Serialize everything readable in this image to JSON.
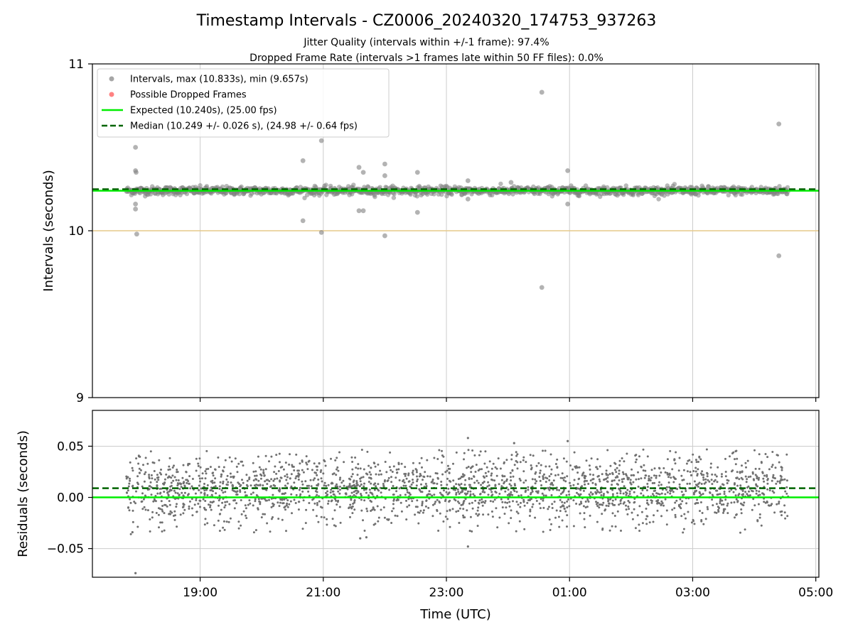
{
  "figure": {
    "title": "Timestamp Intervals - CZ0006_20240320_174753_937263",
    "subtitle_1": "Jitter Quality (intervals within +/-1 frame): 97.4%",
    "subtitle_2": "Dropped Frame Rate (intervals >1 frames late within 50 FF files): 0.0%"
  },
  "colors": {
    "points": "#808080",
    "dropped": "#ff4d4d",
    "expected": "#00ee00",
    "median": "#006400",
    "ref_line": "#e6c98a",
    "grid": "#cccccc"
  },
  "chart_data": [
    {
      "type": "scatter",
      "ylabel": "Intervals (seconds)",
      "ylim": [
        9,
        11
      ],
      "yticks": [
        "9",
        "10",
        "11"
      ],
      "y_tick_values": [
        9,
        10,
        11
      ],
      "xlim_hours": [
        17.25,
        29.05
      ],
      "x_grid_hours": [
        19,
        21,
        23,
        25,
        27,
        29
      ],
      "grid": true,
      "legend_position": "upper-left",
      "expected": 10.24,
      "median": 10.249,
      "reference": 10.0,
      "band_center": 10.24,
      "band_halfwidth": 0.028,
      "x_range_hours": [
        17.8,
        28.55
      ],
      "legend": [
        {
          "label": "Intervals, max (10.833s), min (9.657s)",
          "kind": "point",
          "color": "#808080"
        },
        {
          "label": "Possible Dropped Frames",
          "kind": "point",
          "color": "#ff4d4d"
        },
        {
          "label": "Expected (10.240s), (25.00 fps)",
          "kind": "line",
          "color": "#00ee00"
        },
        {
          "label": "Median (10.249 +/- 0.026 s), (24.98 +/- 0.64 fps)",
          "kind": "dash",
          "color": "#006400"
        }
      ],
      "outliers": [
        {
          "x": 17.95,
          "y": 10.5
        },
        {
          "x": 17.95,
          "y": 10.36
        },
        {
          "x": 17.96,
          "y": 10.35
        },
        {
          "x": 17.95,
          "y": 10.16
        },
        {
          "x": 17.95,
          "y": 10.13
        },
        {
          "x": 17.97,
          "y": 9.98
        },
        {
          "x": 20.67,
          "y": 10.42
        },
        {
          "x": 20.67,
          "y": 10.06
        },
        {
          "x": 20.97,
          "y": 10.54
        },
        {
          "x": 20.97,
          "y": 9.99
        },
        {
          "x": 21.58,
          "y": 10.38
        },
        {
          "x": 21.65,
          "y": 10.35
        },
        {
          "x": 21.58,
          "y": 10.12
        },
        {
          "x": 21.65,
          "y": 10.12
        },
        {
          "x": 22.0,
          "y": 10.4
        },
        {
          "x": 22.0,
          "y": 10.33
        },
        {
          "x": 22.0,
          "y": 9.97
        },
        {
          "x": 22.53,
          "y": 10.35
        },
        {
          "x": 22.53,
          "y": 10.11
        },
        {
          "x": 24.55,
          "y": 10.83
        },
        {
          "x": 24.55,
          "y": 9.66
        },
        {
          "x": 24.97,
          "y": 10.36
        },
        {
          "x": 24.97,
          "y": 10.16
        },
        {
          "x": 28.4,
          "y": 10.64
        },
        {
          "x": 28.4,
          "y": 9.85
        },
        {
          "x": 23.35,
          "y": 10.3
        },
        {
          "x": 23.35,
          "y": 10.19
        },
        {
          "x": 24.05,
          "y": 10.29
        }
      ]
    },
    {
      "type": "scatter",
      "xlabel": "Time (UTC)",
      "ylabel": "Residuals (seconds)",
      "ylim": [
        -0.078,
        0.085
      ],
      "yticks": [
        "0.05",
        "0.00",
        "−0.05"
      ],
      "y_tick_values": [
        0.05,
        0.0,
        -0.05
      ],
      "xticks": [
        "19:00",
        "21:00",
        "23:00",
        "01:00",
        "03:00",
        "05:00"
      ],
      "x_tick_hours": [
        19,
        21,
        23,
        25,
        27,
        29
      ],
      "xlim_hours": [
        17.25,
        29.05
      ],
      "grid": true,
      "expected": 0.0,
      "median": 0.009,
      "x_range_hours": [
        17.8,
        28.55
      ],
      "spread": 0.017,
      "mean": 0.008,
      "outliers": [
        {
          "x": 17.95,
          "y": -0.074
        },
        {
          "x": 23.35,
          "y": 0.058
        },
        {
          "x": 23.35,
          "y": -0.048
        },
        {
          "x": 21.6,
          "y": -0.04
        },
        {
          "x": 21.7,
          "y": -0.039
        },
        {
          "x": 24.1,
          "y": 0.053
        },
        {
          "x": 24.97,
          "y": 0.055
        },
        {
          "x": 17.9,
          "y": -0.034
        }
      ]
    }
  ]
}
